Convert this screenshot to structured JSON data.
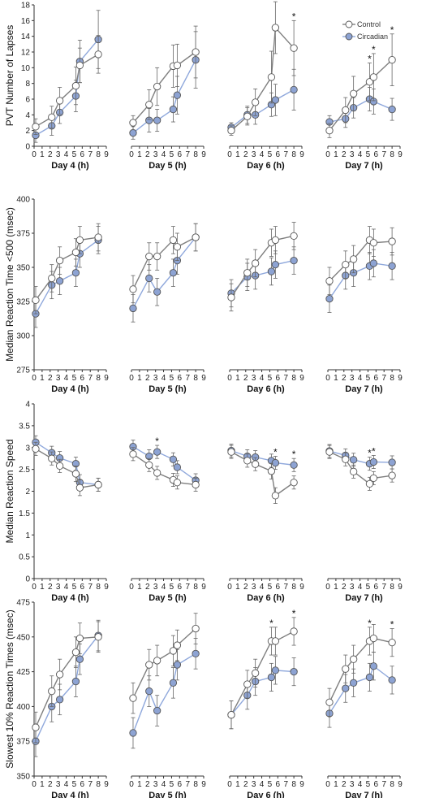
{
  "colors": {
    "control": "#7f7f7f",
    "circadian": "#8fa8dc",
    "circadian_fill": "#8da3d3",
    "axis": "#333333",
    "errorbar": "#666666"
  },
  "legend": {
    "control": "Control",
    "circadian": "Circadian"
  },
  "chart_data": [
    {
      "type": "line",
      "ylabel": "PVT Number of Lapses",
      "ylim": [
        0,
        18
      ],
      "yticks": [
        0,
        2,
        4,
        6,
        8,
        10,
        12,
        14,
        16,
        18
      ],
      "xlim": [
        0,
        9
      ],
      "xticks": [
        0,
        1,
        2,
        3,
        4,
        5,
        6,
        7,
        8,
        9
      ],
      "legend_position": "top-right of Day 7 panel",
      "panels": [
        {
          "xlabel": "Day 4 (h)",
          "control": {
            "x": [
              0.2,
              2.2,
              3.2,
              5.2,
              5.7,
              8
            ],
            "y": [
              2.5,
              3.7,
              5.8,
              7.7,
              10.3,
              11.7
            ],
            "err": [
              1.0,
              1.4,
              1.7,
              2.4,
              2.2,
              2.4
            ]
          },
          "circadian": {
            "x": [
              0.2,
              2.2,
              3.2,
              5.2,
              5.7,
              8
            ],
            "y": [
              1.4,
              2.6,
              4.3,
              6.4,
              10.8,
              13.6
            ],
            "err": [
              0.9,
              1.2,
              1.4,
              2.0,
              2.7,
              3.7
            ]
          },
          "stars": []
        },
        {
          "xlabel": "Day 5 (h)",
          "control": {
            "x": [
              0.2,
              2.2,
              3.2,
              5.2,
              5.7,
              8
            ],
            "y": [
              3.0,
              5.3,
              7.6,
              10.2,
              10.3,
              12.0
            ],
            "err": [
              0.9,
              1.9,
              2.4,
              2.7,
              2.7,
              3.3
            ]
          },
          "circadian": {
            "x": [
              0.2,
              2.2,
              3.2,
              5.2,
              5.7,
              8
            ],
            "y": [
              1.7,
              3.3,
              3.3,
              4.7,
              6.5,
              11.0
            ],
            "err": [
              0.8,
              1.5,
              1.4,
              1.6,
              2.4,
              3.6
            ]
          },
          "stars": []
        },
        {
          "xlabel": "Day 6 (h)",
          "control": {
            "x": [
              0.2,
              2.2,
              3.2,
              5.2,
              5.7,
              8
            ],
            "y": [
              2.0,
              3.8,
              5.6,
              8.8,
              15.1,
              12.5
            ],
            "err": [
              0.6,
              1.1,
              1.7,
              3.3,
              3.3,
              3.5
            ]
          },
          "circadian": {
            "x": [
              0.2,
              2.2,
              3.2,
              5.2,
              5.7,
              8
            ],
            "y": [
              2.4,
              4.0,
              4.0,
              5.3,
              5.9,
              7.2
            ],
            "err": [
              0.6,
              1.1,
              1.2,
              1.5,
              2.0,
              2.6
            ]
          },
          "stars": [
            5.7,
            8
          ]
        },
        {
          "xlabel": "Day 7 (h)",
          "control": {
            "x": [
              0.2,
              2.2,
              3.2,
              5.2,
              5.7,
              8
            ],
            "y": [
              2.0,
              4.6,
              6.7,
              8.2,
              8.8,
              11.0
            ],
            "err": [
              0.9,
              1.6,
              2.2,
              2.4,
              3.0,
              3.3
            ]
          },
          "circadian": {
            "x": [
              0.2,
              2.2,
              3.2,
              5.2,
              5.7,
              8
            ],
            "y": [
              3.1,
              3.5,
              4.9,
              6.0,
              5.7,
              4.7
            ],
            "err": [
              0.8,
              1.1,
              1.3,
              1.5,
              1.6,
              1.4
            ]
          },
          "stars": [
            5.2,
            5.7,
            8
          ]
        }
      ]
    },
    {
      "type": "line",
      "ylabel": "Median Reaction Time <500 (msec)",
      "ylim": [
        275,
        400
      ],
      "yticks": [
        275,
        300,
        325,
        350,
        375,
        400
      ],
      "xlim": [
        0,
        9
      ],
      "xticks": [
        0,
        1,
        2,
        3,
        4,
        5,
        6,
        7,
        8,
        9
      ],
      "panels": [
        {
          "xlabel": "Day 4 (h)",
          "control": {
            "x": [
              0.2,
              2.2,
              3.2,
              5.2,
              5.7,
              8
            ],
            "y": [
              326,
              342,
              355,
              361,
              370,
              372
            ],
            "err": [
              10,
              10,
              10,
              10,
              10,
              10
            ]
          },
          "circadian": {
            "x": [
              0.2,
              2.2,
              3.2,
              5.2,
              5.7,
              8
            ],
            "y": [
              316,
              337,
              340,
              346,
              360,
              370
            ],
            "err": [
              10,
              10,
              10,
              10,
              10,
              10
            ]
          },
          "stars": []
        },
        {
          "xlabel": "Day 5 (h)",
          "control": {
            "x": [
              0.2,
              2.2,
              3.2,
              5.2,
              5.7,
              8
            ],
            "y": [
              334,
              358,
              358,
              370,
              365,
              372
            ],
            "err": [
              10,
              10,
              10,
              10,
              10,
              10
            ]
          },
          "circadian": {
            "x": [
              0.2,
              2.2,
              3.2,
              5.2,
              5.7,
              8
            ],
            "y": [
              320,
              342,
              332,
              346,
              355,
              372
            ],
            "err": [
              10,
              10,
              10,
              10,
              10,
              10
            ]
          },
          "stars": []
        },
        {
          "xlabel": "Day 6 (h)",
          "control": {
            "x": [
              0.2,
              2.2,
              3.2,
              5.2,
              5.7,
              8
            ],
            "y": [
              328,
              346,
              353,
              368,
              370,
              373
            ],
            "err": [
              10,
              10,
              10,
              10,
              10,
              10
            ]
          },
          "circadian": {
            "x": [
              0.2,
              2.2,
              3.2,
              5.2,
              5.7,
              8
            ],
            "y": [
              331,
              343,
              344,
              347,
              352,
              355
            ],
            "err": [
              10,
              10,
              10,
              10,
              10,
              10
            ]
          },
          "stars": []
        },
        {
          "xlabel": "Day 7 (h)",
          "control": {
            "x": [
              0.2,
              2.2,
              3.2,
              5.2,
              5.7,
              8
            ],
            "y": [
              340,
              352,
              356,
              370,
              368,
              369
            ],
            "err": [
              10,
              10,
              10,
              10,
              10,
              10
            ]
          },
          "circadian": {
            "x": [
              0.2,
              2.2,
              3.2,
              5.2,
              5.7,
              8
            ],
            "y": [
              327,
              344,
              346,
              351,
              353,
              351
            ],
            "err": [
              10,
              10,
              10,
              10,
              10,
              10
            ]
          },
          "stars": []
        }
      ]
    },
    {
      "type": "line",
      "ylabel": "Median Reaction Speed",
      "ylim": [
        0,
        4
      ],
      "yticks": [
        0,
        0.5,
        1,
        1.5,
        2,
        2.5,
        3,
        3.5,
        4
      ],
      "xlim": [
        0,
        9
      ],
      "xticks": [
        0,
        1,
        2,
        3,
        4,
        5,
        6,
        7,
        8,
        9
      ],
      "panels": [
        {
          "xlabel": "Day 4 (h)",
          "control": {
            "x": [
              0.2,
              2.2,
              3.2,
              5.2,
              5.7,
              8
            ],
            "y": [
              2.97,
              2.75,
              2.58,
              2.4,
              2.08,
              2.15
            ],
            "err": [
              0.15,
              0.15,
              0.15,
              0.18,
              0.18,
              0.15
            ]
          },
          "circadian": {
            "x": [
              0.2,
              2.2,
              3.2,
              5.2,
              5.7,
              8
            ],
            "y": [
              3.12,
              2.88,
              2.76,
              2.63,
              2.2,
              2.15
            ],
            "err": [
              0.15,
              0.15,
              0.15,
              0.15,
              0.18,
              0.15
            ]
          },
          "stars": []
        },
        {
          "xlabel": "Day 5 (h)",
          "control": {
            "x": [
              0.2,
              2.2,
              3.2,
              5.2,
              5.7,
              8
            ],
            "y": [
              2.85,
              2.6,
              2.42,
              2.26,
              2.2,
              2.15
            ],
            "err": [
              0.15,
              0.15,
              0.15,
              0.15,
              0.15,
              0.15
            ]
          },
          "circadian": {
            "x": [
              0.2,
              2.2,
              3.2,
              5.2,
              5.7,
              8
            ],
            "y": [
              3.02,
              2.8,
              2.9,
              2.73,
              2.55,
              2.25
            ],
            "err": [
              0.15,
              0.15,
              0.15,
              0.15,
              0.15,
              0.15
            ]
          },
          "stars": [
            3.2
          ]
        },
        {
          "xlabel": "Day 6 (h)",
          "control": {
            "x": [
              0.2,
              2.2,
              3.2,
              5.2,
              5.7,
              8
            ],
            "y": [
              2.9,
              2.7,
              2.62,
              2.46,
              1.9,
              2.2
            ],
            "err": [
              0.15,
              0.15,
              0.15,
              0.18,
              0.18,
              0.15
            ]
          },
          "circadian": {
            "x": [
              0.2,
              2.2,
              3.2,
              5.2,
              5.7,
              8
            ],
            "y": [
              2.93,
              2.8,
              2.78,
              2.7,
              2.65,
              2.6
            ],
            "err": [
              0.15,
              0.15,
              0.15,
              0.15,
              0.15,
              0.15
            ]
          },
          "stars": [
            5.7,
            8
          ]
        },
        {
          "xlabel": "Day 7 (h)",
          "control": {
            "x": [
              0.2,
              2.2,
              3.2,
              5.2,
              5.7,
              8
            ],
            "y": [
              2.9,
              2.73,
              2.45,
              2.17,
              2.3,
              2.36
            ],
            "err": [
              0.15,
              0.15,
              0.15,
              0.15,
              0.15,
              0.15
            ]
          },
          "circadian": {
            "x": [
              0.2,
              2.2,
              3.2,
              5.2,
              5.7,
              8
            ],
            "y": [
              2.92,
              2.82,
              2.72,
              2.63,
              2.67,
              2.66
            ],
            "err": [
              0.15,
              0.15,
              0.15,
              0.15,
              0.15,
              0.15
            ]
          },
          "stars": [
            5.2,
            5.7
          ]
        }
      ]
    },
    {
      "type": "line",
      "ylabel": "Slowest 10% Reaction Times (msec)",
      "ylim": [
        350,
        475
      ],
      "yticks": [
        350,
        375,
        400,
        425,
        450,
        475
      ],
      "xlim": [
        0,
        9
      ],
      "xticks": [
        0,
        1,
        2,
        3,
        4,
        5,
        6,
        7,
        8,
        9
      ],
      "panels": [
        {
          "xlabel": "Day 4 (h)",
          "control": {
            "x": [
              0.2,
              2.2,
              3.2,
              5.2,
              5.7,
              8
            ],
            "y": [
              385,
              411,
              423,
              439,
              449,
              450
            ],
            "err": [
              11,
              11,
              11,
              11,
              11,
              11
            ]
          },
          "circadian": {
            "x": [
              0.2,
              2.2,
              3.2,
              5.2,
              5.7,
              8
            ],
            "y": [
              375,
              400,
              405,
              418,
              434,
              451
            ],
            "err": [
              11,
              11,
              11,
              11,
              11,
              11
            ]
          },
          "stars": []
        },
        {
          "xlabel": "Day 5 (h)",
          "control": {
            "x": [
              0.2,
              2.2,
              3.2,
              5.2,
              5.7,
              8
            ],
            "y": [
              406,
              430,
              433,
              440,
              444,
              456
            ],
            "err": [
              11,
              11,
              11,
              11,
              11,
              11
            ]
          },
          "circadian": {
            "x": [
              0.2,
              2.2,
              3.2,
              5.2,
              5.7,
              8
            ],
            "y": [
              381,
              411,
              397,
              417,
              430,
              438
            ],
            "err": [
              11,
              11,
              11,
              11,
              11,
              11
            ]
          },
          "stars": []
        },
        {
          "xlabel": "Day 6 (h)",
          "control": {
            "x": [
              0.2,
              2.2,
              3.2,
              5.2,
              5.7,
              8
            ],
            "y": [
              394,
              416,
              424,
              447,
              447,
              454
            ],
            "err": [
              10,
              10,
              10,
              10,
              10,
              10
            ]
          },
          "circadian": {
            "x": [
              0.2,
              2.2,
              3.2,
              5.2,
              5.7,
              8
            ],
            "y": [
              394,
              408,
              418,
              421,
              426,
              425
            ],
            "err": [
              10,
              10,
              10,
              10,
              10,
              10
            ]
          },
          "stars": [
            5.2,
            8
          ]
        },
        {
          "xlabel": "Day 7 (h)",
          "control": {
            "x": [
              0.2,
              2.2,
              3.2,
              5.2,
              5.7,
              8
            ],
            "y": [
              403,
              427,
              434,
              447,
              449,
              446
            ],
            "err": [
              10,
              10,
              10,
              10,
              10,
              10
            ]
          },
          "circadian": {
            "x": [
              0.2,
              2.2,
              3.2,
              5.2,
              5.7,
              8
            ],
            "y": [
              395,
              413,
              417,
              421,
              429,
              419
            ],
            "err": [
              10,
              10,
              10,
              10,
              10,
              10
            ]
          },
          "stars": [
            5.2,
            8
          ]
        }
      ]
    }
  ]
}
